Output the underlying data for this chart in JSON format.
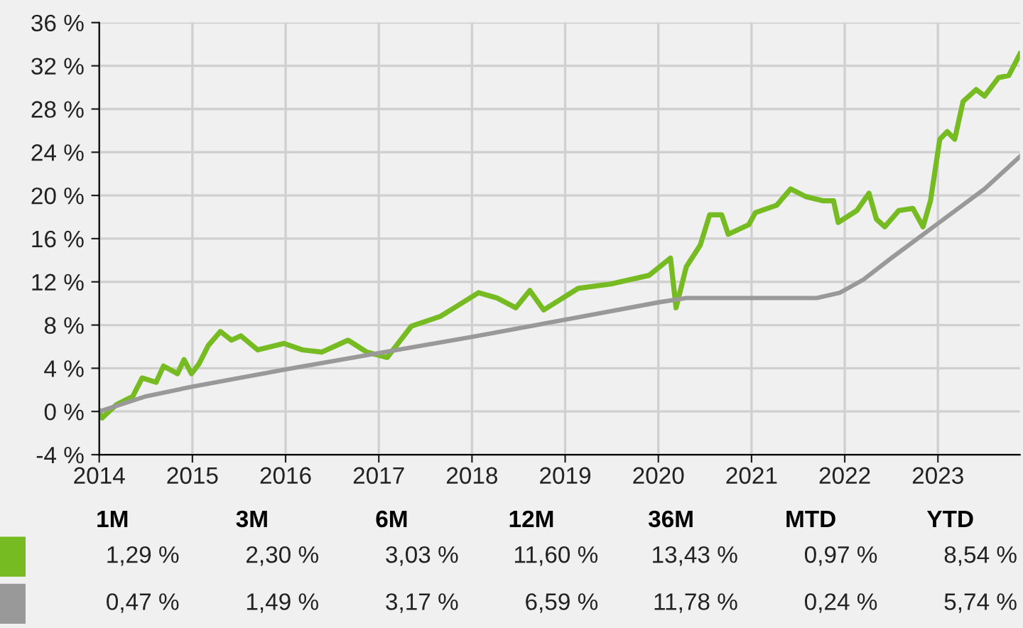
{
  "chart_data": [
    {
      "type": "line",
      "xlim": [
        2014,
        2023.88
      ],
      "ylim": [
        -4,
        36
      ],
      "xticks": [
        2014,
        2015,
        2016,
        2017,
        2018,
        2019,
        2020,
        2021,
        2022,
        2023
      ],
      "yticks": [
        {
          "value": -4,
          "label": "-4 %"
        },
        {
          "value": 0,
          "label": "0 %"
        },
        {
          "value": 4,
          "label": "4 %"
        },
        {
          "value": 8,
          "label": "8 %"
        },
        {
          "value": 12,
          "label": "12 %"
        },
        {
          "value": 16,
          "label": "16 %"
        },
        {
          "value": 20,
          "label": "20 %"
        },
        {
          "value": 24,
          "label": "24 %"
        },
        {
          "value": 28,
          "label": "28 %"
        },
        {
          "value": 32,
          "label": "32 %"
        },
        {
          "value": 36,
          "label": "36 %"
        }
      ],
      "grid": true,
      "marker": "none",
      "line_style": "solid",
      "series": [
        {
          "color": "#77bb22",
          "x": [
            2014.0,
            2014.03,
            2014.18,
            2014.36,
            2014.46,
            2014.61,
            2014.69,
            2014.84,
            2014.91,
            2014.99,
            2015.07,
            2015.17,
            2015.3,
            2015.42,
            2015.52,
            2015.7,
            2015.98,
            2016.18,
            2016.39,
            2016.67,
            2016.87,
            2017.09,
            2017.35,
            2017.66,
            2017.81,
            2018.07,
            2018.27,
            2018.47,
            2018.62,
            2018.77,
            2019.14,
            2019.49,
            2019.64,
            2019.9,
            2020.13,
            2020.19,
            2020.3,
            2020.45,
            2020.55,
            2020.68,
            2020.75,
            2020.97,
            2021.04,
            2021.27,
            2021.42,
            2021.58,
            2021.77,
            2021.88,
            2021.93,
            2022.13,
            2022.26,
            2022.34,
            2022.43,
            2022.58,
            2022.73,
            2022.84,
            2022.92,
            2023.02,
            2023.1,
            2023.18,
            2023.27,
            2023.41,
            2023.5,
            2023.65,
            2023.76,
            2023.88
          ],
          "values": [
            0,
            -0.6,
            0.6,
            1.4,
            3.1,
            2.7,
            4.2,
            3.5,
            4.8,
            3.5,
            4.4,
            6.1,
            7.4,
            6.6,
            7.0,
            5.7,
            6.3,
            5.7,
            5.5,
            6.6,
            5.5,
            5.0,
            7.9,
            8.8,
            9.6,
            11.0,
            10.5,
            9.6,
            11.2,
            9.4,
            11.4,
            11.8,
            12.1,
            12.6,
            14.2,
            9.6,
            13.4,
            15.4,
            18.2,
            18.2,
            16.4,
            17.3,
            18.4,
            19.1,
            20.6,
            19.9,
            19.5,
            19.5,
            17.5,
            18.6,
            20.2,
            17.8,
            17.1,
            18.6,
            18.8,
            17.1,
            19.5,
            25.2,
            25.9,
            25.2,
            28.7,
            29.8,
            29.2,
            30.9,
            31.1,
            33.1
          ]
        },
        {
          "color": "#999999",
          "x": [
            2014.0,
            2014.5,
            2015.0,
            2016.0,
            2017.0,
            2018.0,
            2019.0,
            2020.0,
            2020.3,
            2021.0,
            2021.7,
            2021.95,
            2022.2,
            2022.5,
            2023.0,
            2023.5,
            2023.88
          ],
          "values": [
            0,
            1.4,
            2.3,
            3.9,
            5.4,
            6.9,
            8.5,
            10.1,
            10.5,
            10.5,
            10.5,
            11.0,
            12.2,
            14.2,
            17.4,
            20.6,
            23.6
          ]
        }
      ]
    },
    {
      "type": "other",
      "categories": [
        "1M",
        "3M",
        "6M",
        "12M",
        "36M",
        "MTD",
        "YTD"
      ],
      "series": [
        {
          "color": "#77bb22",
          "values": [
            1.29,
            2.3,
            3.03,
            11.6,
            13.43,
            0.97,
            8.54
          ],
          "value_labels": [
            "1,29 %",
            "2,30 %",
            "3,03 %",
            "11,60 %",
            "13,43 %",
            "0,97 %",
            "8,54 %"
          ]
        },
        {
          "color": "#999999",
          "values": [
            0.47,
            1.49,
            3.17,
            6.59,
            11.78,
            0.24,
            5.74
          ],
          "value_labels": [
            "0,47 %",
            "1,49 %",
            "3,17 %",
            "6,59 %",
            "11,78 %",
            "0,24 %",
            "5,74 %"
          ]
        }
      ]
    }
  ]
}
